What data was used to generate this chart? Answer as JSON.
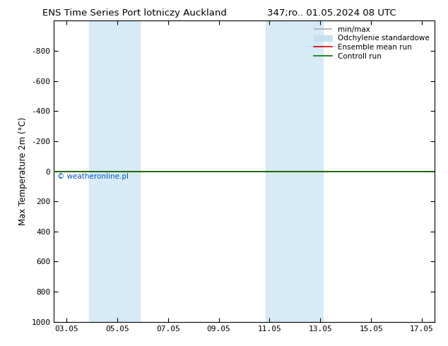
{
  "title_left": "ENS Time Series Port lotniczy Auckland",
  "title_right": "347;ro.. 01.05.2024 08 UTC",
  "ylabel": "Max Temperature 2m (°C)",
  "ylim_top": -1000,
  "ylim_bottom": 1000,
  "yticks": [
    -800,
    -600,
    -400,
    -200,
    0,
    200,
    400,
    600,
    800,
    1000
  ],
  "xtick_labels": [
    "03.05",
    "05.05",
    "07.05",
    "09.05",
    "11.05",
    "13.05",
    "15.05",
    "17.05"
  ],
  "xtick_positions": [
    3,
    5,
    7,
    9,
    11,
    13,
    15,
    17
  ],
  "xlim": [
    2.5,
    17.5
  ],
  "shade_bands": [
    {
      "xmin": 3.9,
      "xmax": 5.9,
      "color": "#d6eaf8"
    },
    {
      "xmin": 10.85,
      "xmax": 13.1,
      "color": "#d6eaf8"
    }
  ],
  "green_line_y": 0,
  "red_line_y": 0,
  "watermark": "© weatheronline.pl",
  "watermark_color": "#0055cc",
  "background_color": "#ffffff",
  "plot_bg_color": "#ffffff",
  "legend_entries": [
    {
      "label": "min/max",
      "color": "#aaaaaa",
      "lw": 1.2
    },
    {
      "label": "Odchylenie standardowe",
      "color": "#c8dff0",
      "lw": 8
    },
    {
      "label": "Ensemble mean run",
      "color": "#cc0000",
      "lw": 1.2
    },
    {
      "label": "Controll run",
      "color": "#007700",
      "lw": 1.2
    }
  ],
  "title_fontsize": 9.5,
  "axis_fontsize": 8.5,
  "tick_fontsize": 8,
  "legend_fontsize": 7.5
}
